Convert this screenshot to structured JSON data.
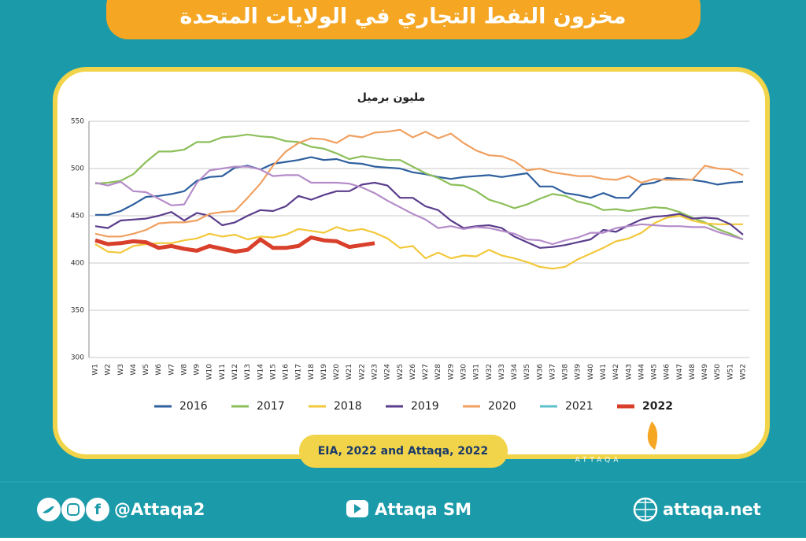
{
  "chart_data": {
    "type": "line",
    "title": "مخزون النفط التجاري في الولايات المتحدة",
    "y_label": "مليون برميل",
    "source": "EIA, 2022 and Attaqa, 2022",
    "categories": [
      "W1",
      "W2",
      "W3",
      "W4",
      "W5",
      "W6",
      "W7",
      "W8",
      "W9",
      "W10",
      "W11",
      "W12",
      "W13",
      "W14",
      "W15",
      "W16",
      "W17",
      "W18",
      "W19",
      "W20",
      "W21",
      "W22",
      "W23",
      "W24",
      "W25",
      "W26",
      "W27",
      "W28",
      "W29",
      "W30",
      "W31",
      "W32",
      "W33",
      "W34",
      "W35",
      "W36",
      "W37",
      "W38",
      "W39",
      "W40",
      "W41",
      "W42",
      "W43",
      "W44",
      "W45",
      "W46",
      "W47",
      "W48",
      "W49",
      "W50",
      "W51",
      "W52"
    ],
    "ylim": [
      300,
      550
    ],
    "yticks": [
      300,
      350,
      400,
      450,
      500,
      550
    ],
    "grid": true,
    "legend": "bottom",
    "series": [
      {
        "name": "2016",
        "color": "#2e5f9e",
        "values": [
          451,
          451,
          455,
          462,
          470,
          471,
          473,
          476,
          487,
          491,
          492,
          501,
          503,
          499,
          505,
          507,
          509,
          512,
          509,
          510,
          506,
          505,
          502,
          501,
          500,
          496,
          494,
          491,
          489,
          491,
          492,
          493,
          491,
          493,
          495,
          481,
          481,
          474,
          472,
          469,
          474,
          469,
          469,
          483,
          485,
          490,
          489,
          488,
          486,
          483,
          485,
          486
        ]
      },
      {
        "name": "2017",
        "color": "#8cbf5a",
        "values": [
          484,
          485,
          487,
          494,
          507,
          518,
          518,
          520,
          528,
          528,
          533,
          534,
          536,
          534,
          533,
          529,
          528,
          523,
          521,
          516,
          510,
          513,
          511,
          509,
          509,
          502,
          495,
          490,
          483,
          482,
          476,
          467,
          463,
          458,
          462,
          468,
          473,
          471,
          465,
          462,
          456,
          457,
          455,
          457,
          459,
          458,
          454,
          448,
          443,
          436,
          431,
          425
        ]
      },
      {
        "name": "2018",
        "color": "#f2c83a",
        "values": [
          420,
          412,
          411,
          418,
          420,
          421,
          421,
          424,
          426,
          431,
          428,
          430,
          425,
          428,
          427,
          430,
          436,
          434,
          432,
          438,
          434,
          436,
          432,
          426,
          416,
          418,
          405,
          411,
          405,
          408,
          407,
          414,
          408,
          405,
          401,
          396,
          394,
          396,
          404,
          410,
          416,
          423,
          426,
          432,
          442,
          448,
          450,
          445,
          442,
          441,
          441,
          441
        ]
      },
      {
        "name": "2019",
        "color": "#5a3d8c",
        "values": [
          439,
          437,
          445,
          446,
          447,
          450,
          454,
          445,
          453,
          450,
          440,
          443,
          450,
          456,
          455,
          460,
          471,
          467,
          472,
          476,
          476,
          483,
          485,
          482,
          469,
          469,
          460,
          456,
          445,
          437,
          439,
          440,
          437,
          428,
          422,
          416,
          417,
          419,
          422,
          425,
          435,
          433,
          440,
          446,
          449,
          450,
          452,
          447,
          448,
          447,
          441,
          430
        ]
      },
      {
        "name": "2020",
        "color": "#f0a060",
        "values": [
          431,
          428,
          428,
          431,
          435,
          442,
          443,
          443,
          445,
          452,
          454,
          455,
          469,
          484,
          503,
          518,
          527,
          532,
          531,
          527,
          535,
          533,
          538,
          539,
          541,
          533,
          539,
          532,
          537,
          527,
          519,
          514,
          513,
          508,
          498,
          500,
          496,
          494,
          492,
          492,
          489,
          488,
          492,
          485,
          489,
          488,
          488,
          488,
          503,
          500,
          499,
          493
        ]
      },
      {
        "name": "2021",
        "color": "#b58cc9",
        "legend_color": "#5bc0c8",
        "values": [
          485,
          482,
          486,
          476,
          475,
          468,
          461,
          462,
          485,
          498,
          500,
          502,
          502,
          499,
          492,
          493,
          493,
          485,
          485,
          485,
          484,
          480,
          474,
          466,
          459,
          452,
          446,
          437,
          439,
          436,
          438,
          437,
          434,
          431,
          425,
          424,
          420,
          424,
          427,
          432,
          432,
          437,
          439,
          441,
          440,
          439,
          439,
          438,
          438,
          433,
          429,
          425
        ]
      },
      {
        "name": "2022",
        "color": "#d9402b",
        "values": [
          424,
          420,
          421,
          423,
          422,
          416,
          418,
          415,
          413,
          418,
          415,
          412,
          414,
          425,
          416,
          416,
          418,
          427,
          424,
          423,
          417,
          419,
          421,
          null,
          null,
          null,
          null,
          null,
          null,
          null,
          null,
          null,
          null,
          null,
          null,
          null,
          null,
          null,
          null,
          null,
          null,
          null,
          null,
          null,
          null,
          null,
          null,
          null,
          null,
          null,
          null,
          null
        ]
      }
    ]
  },
  "branding": {
    "logo": "الطاقة",
    "logo_latin": "ATTAQA",
    "twitter": "@Attaqa2",
    "youtube": "Attaqa SM",
    "website": "attaqa.net"
  }
}
